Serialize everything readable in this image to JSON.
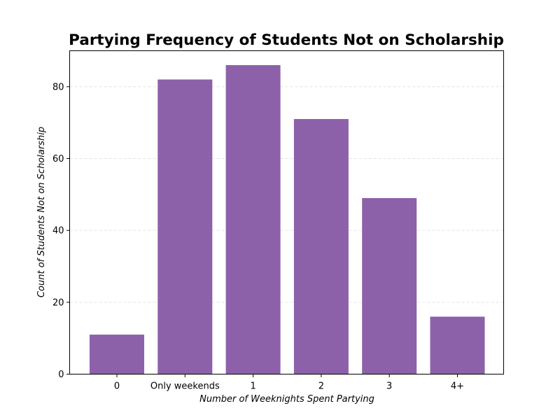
{
  "chart_data": {
    "type": "bar",
    "title": "Partying Frequency of Students Not on Scholarship",
    "xlabel": "Number of Weeknights Spent Partying",
    "ylabel": "Count of Students Not on Scholarship",
    "categories": [
      "0",
      "Only weekends",
      "1",
      "2",
      "3",
      "4+"
    ],
    "values": [
      11,
      82,
      86,
      71,
      49,
      16
    ],
    "ylim": [
      0,
      90
    ],
    "yticks": [
      0,
      20,
      40,
      60,
      80
    ],
    "grid": "horizontal dashed",
    "colors": {
      "bar": "#8c61aa",
      "grid": "#e3e3e3",
      "axis": "#000000"
    }
  }
}
